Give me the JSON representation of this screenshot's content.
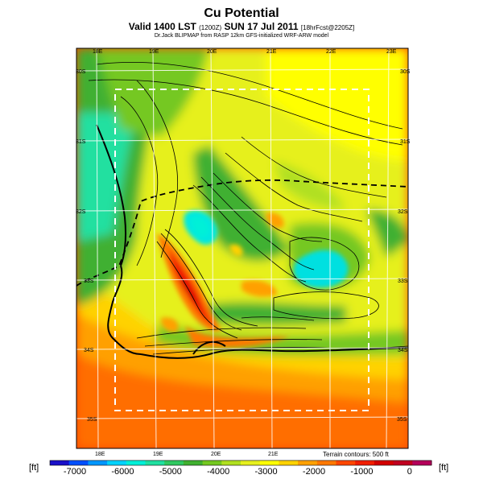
{
  "header": {
    "title": "Cu Potential",
    "valid_line_a": "Valid 1400 LST",
    "valid_line_small": "(1200Z)",
    "valid_line_b": "SUN 17 Jul 2011",
    "valid_line_tail": "[18hrFcst@2205Z]",
    "source_line": "Dr.Jack BLIPMAP from RASP 12km GFS-initialized WRF-ARW model"
  },
  "map": {
    "lon_labels_top": [
      "18E",
      "19E",
      "20E",
      "21E",
      "22E",
      "23E"
    ],
    "lon_labels_bottom": [
      "18E",
      "19E",
      "20E",
      "21E"
    ],
    "lat_labels_left": [
      "30S",
      "31S",
      "32S",
      "33S",
      "34S",
      "35S"
    ],
    "lat_labels_right": [
      "30S",
      "31S",
      "32S",
      "33S",
      "34S",
      "35S"
    ],
    "terrain_note": "Terrain contours: 500 ft"
  },
  "colorbar": {
    "unit_left": "[ft]",
    "unit_right": "[ft]",
    "tick_labels": [
      "-7000",
      "-6000",
      "-5000",
      "-4000",
      "-3000",
      "-2000",
      "-1000",
      "0"
    ],
    "colors": [
      "#1a10c8",
      "#0050ff",
      "#0096ff",
      "#00d2ff",
      "#00f0d8",
      "#20e0a0",
      "#30c860",
      "#40b030",
      "#74c820",
      "#b0e020",
      "#e6f01e",
      "#ffff00",
      "#ffd200",
      "#ffa000",
      "#ff7800",
      "#ff4600",
      "#f01e00",
      "#d20000",
      "#c00020",
      "#b4005a"
    ]
  },
  "field": {
    "background": "#ff4a00"
  }
}
